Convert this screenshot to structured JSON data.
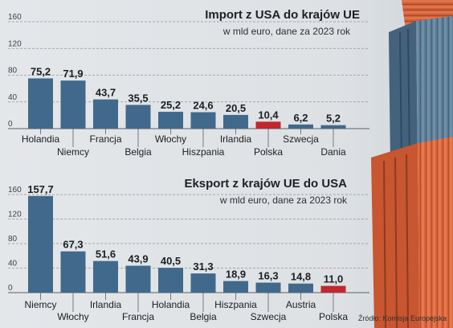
{
  "colors": {
    "bar": "#41698c",
    "highlight": "#c1272d",
    "grid": "#8f959b",
    "background": "#dfe3e6"
  },
  "source": "Źródło: Komisja Europejska",
  "chart_data": [
    {
      "type": "bar",
      "title": "Import z USA do krajów UE",
      "subtitle": "w mld euro, dane za 2023 rok",
      "categories": [
        "Holandia",
        "Niemcy",
        "Francja",
        "Belgia",
        "Włochy",
        "Hiszpania",
        "Irlandia",
        "Polska",
        "Szwecja",
        "Dania"
      ],
      "values": [
        75.2,
        71.9,
        43.7,
        35.5,
        25.2,
        24.6,
        20.5,
        10.4,
        6.2,
        5.2
      ],
      "value_labels": [
        "75,2",
        "71,9",
        "43,7",
        "35,5",
        "25,2",
        "24,6",
        "20,5",
        "10,4",
        "6,2",
        "5,2"
      ],
      "highlight": "Polska",
      "yticks": [
        0,
        40,
        80,
        120,
        160
      ],
      "ylim": [
        0,
        160
      ],
      "grid": true
    },
    {
      "type": "bar",
      "title": "Eksport z krajów UE do USA",
      "subtitle": "w mld euro, dane za 2023 rok",
      "categories": [
        "Niemcy",
        "Włochy",
        "Irlandia",
        "Francja",
        "Holandia",
        "Belgia",
        "Hiszpania",
        "Szwecja",
        "Austria",
        "Polska"
      ],
      "values": [
        157.7,
        67.3,
        51.6,
        43.9,
        40.5,
        31.3,
        18.9,
        16.3,
        14.8,
        11.0
      ],
      "value_labels": [
        "157,7",
        "67,3",
        "51,6",
        "43,9",
        "40,5",
        "31,3",
        "18,9",
        "16,3",
        "14,8",
        "11,0"
      ],
      "highlight": "Polska",
      "yticks": [
        0,
        40,
        80,
        120,
        160
      ],
      "ylim": [
        0,
        160
      ],
      "grid": true
    }
  ]
}
